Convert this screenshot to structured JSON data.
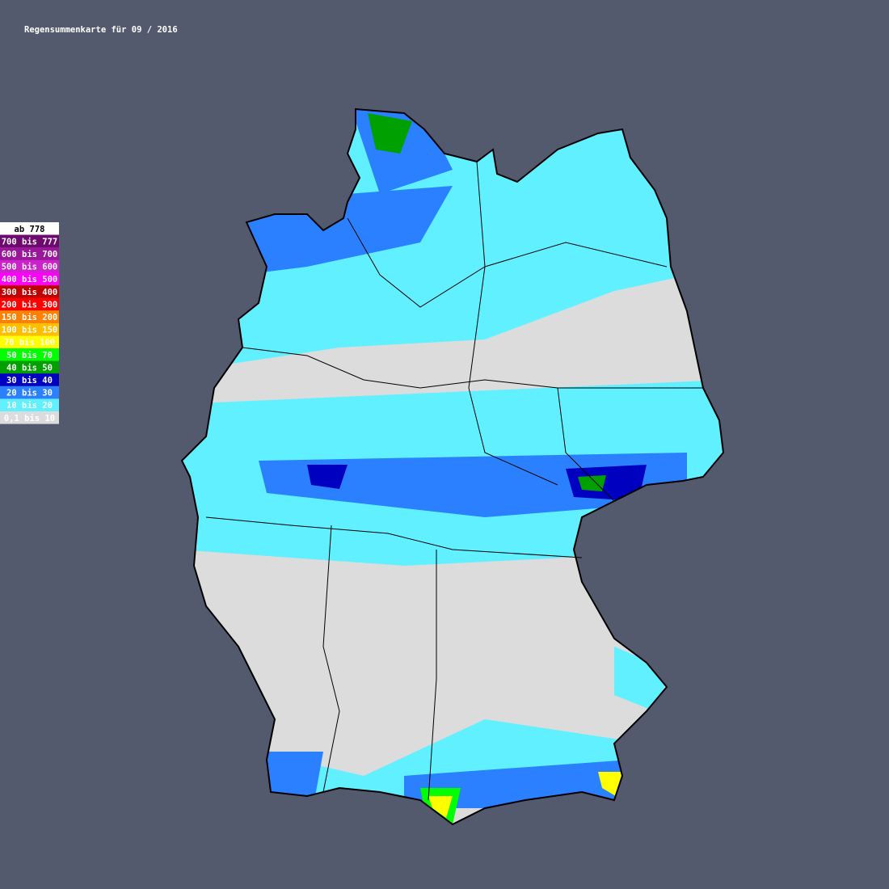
{
  "title": "Regensummenkarte für 09 / 2016",
  "legend": [
    {
      "label": "ab 778",
      "color": "#ffffff"
    },
    {
      "label": "700 bis 777",
      "color": "#6e0a6e"
    },
    {
      "label": "600 bis 700",
      "color": "#9a169a"
    },
    {
      "label": "500 bis 600",
      "color": "#cc22cc"
    },
    {
      "label": "400 bis 500",
      "color": "#ff00ff"
    },
    {
      "label": "300 bis 400",
      "color": "#c00000"
    },
    {
      "label": "200 bis 300",
      "color": "#ff0000"
    },
    {
      "label": "150 bis 200",
      "color": "#ff8000"
    },
    {
      "label": "100 bis 150",
      "color": "#ffbf00"
    },
    {
      "label": "70 bis 100",
      "color": "#ffff00"
    },
    {
      "label": "50 bis 70",
      "color": "#00ff00"
    },
    {
      "label": "40 bis 50",
      "color": "#00a000"
    },
    {
      "label": "30 bis 40",
      "color": "#0000c0"
    },
    {
      "label": "20 bis 30",
      "color": "#2a80ff"
    },
    {
      "label": "10 bis 20",
      "color": "#60f0ff"
    },
    {
      "label": "0,1 bis 10",
      "color": "#dcdcdc"
    }
  ]
}
